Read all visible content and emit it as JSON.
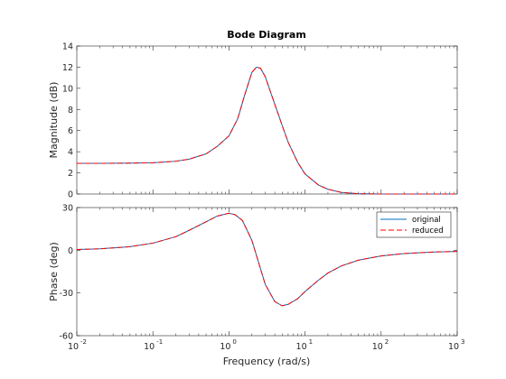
{
  "figure": {
    "title": "Bode Diagram",
    "xlabel": "Frequency  (rad/s)"
  },
  "chart_data": [
    {
      "type": "line",
      "panel": "magnitude",
      "ylabel": "Magnitude (dB)",
      "xscale": "log",
      "xlim": [
        0.01,
        1000
      ],
      "ylim": [
        0,
        14
      ],
      "yticks": [
        0,
        2,
        4,
        6,
        8,
        10,
        12,
        14
      ],
      "grid": false,
      "series": [
        {
          "name": "original",
          "color": "#0072bd",
          "style": "solid",
          "x": [
            0.01,
            0.02,
            0.05,
            0.1,
            0.2,
            0.3,
            0.5,
            0.7,
            1.0,
            1.3,
            1.6,
            2.0,
            2.3,
            2.6,
            3.0,
            3.5,
            4.0,
            5.0,
            6.0,
            8.0,
            10,
            15,
            20,
            30,
            50,
            100,
            200,
            500,
            1000
          ],
          "y": [
            2.9,
            2.9,
            2.92,
            2.96,
            3.1,
            3.3,
            3.8,
            4.5,
            5.5,
            7.1,
            9.3,
            11.5,
            12.0,
            11.9,
            11.1,
            9.7,
            8.5,
            6.5,
            4.9,
            3.0,
            1.9,
            0.85,
            0.45,
            0.15,
            0.03,
            0.0,
            0.0,
            0.0,
            0.0
          ]
        },
        {
          "name": "reduced",
          "color": "#ff0000",
          "style": "dashed",
          "x": [
            0.01,
            0.02,
            0.05,
            0.1,
            0.2,
            0.3,
            0.5,
            0.7,
            1.0,
            1.3,
            1.6,
            2.0,
            2.3,
            2.6,
            3.0,
            3.5,
            4.0,
            5.0,
            6.0,
            8.0,
            10,
            15,
            20,
            30,
            50,
            100,
            200,
            500,
            1000
          ],
          "y": [
            2.9,
            2.9,
            2.92,
            2.96,
            3.1,
            3.3,
            3.8,
            4.5,
            5.5,
            7.1,
            9.3,
            11.5,
            12.0,
            11.9,
            11.1,
            9.7,
            8.5,
            6.5,
            4.9,
            3.0,
            1.9,
            0.85,
            0.45,
            0.15,
            0.03,
            0.0,
            0.0,
            0.0,
            0.0
          ]
        }
      ]
    },
    {
      "type": "line",
      "panel": "phase",
      "ylabel": "Phase (deg)",
      "xscale": "log",
      "xlim": [
        0.01,
        1000
      ],
      "ylim": [
        -60,
        30
      ],
      "yticks": [
        -60,
        -30,
        0,
        30
      ],
      "xticks": [
        "10-2",
        "10-1",
        "100",
        "101",
        "102",
        "103"
      ],
      "grid": false,
      "legend": {
        "position": "top-right",
        "entries": [
          "original",
          "reduced"
        ]
      },
      "series": [
        {
          "name": "original",
          "color": "#0072bd",
          "style": "solid",
          "x": [
            0.01,
            0.02,
            0.05,
            0.1,
            0.2,
            0.3,
            0.5,
            0.7,
            1.0,
            1.2,
            1.5,
            2.0,
            2.5,
            3.0,
            4.0,
            5.0,
            6.0,
            8.0,
            10,
            15,
            20,
            30,
            50,
            100,
            200,
            500,
            1000
          ],
          "y": [
            0.5,
            1.0,
            2.5,
            5.0,
            9.5,
            14,
            20,
            24,
            26,
            25,
            21,
            7,
            -10,
            -24,
            -36,
            -39,
            -38,
            -34,
            -29,
            -21,
            -16,
            -11,
            -7,
            -4,
            -2.3,
            -1.2,
            -0.8
          ]
        },
        {
          "name": "reduced",
          "color": "#ff0000",
          "style": "dashed",
          "x": [
            0.01,
            0.02,
            0.05,
            0.1,
            0.2,
            0.3,
            0.5,
            0.7,
            1.0,
            1.2,
            1.5,
            2.0,
            2.5,
            3.0,
            4.0,
            5.0,
            6.0,
            8.0,
            10,
            15,
            20,
            30,
            50,
            100,
            200,
            500,
            1000
          ],
          "y": [
            0.5,
            1.0,
            2.5,
            5.0,
            9.5,
            14,
            20,
            24,
            26,
            25,
            21,
            7,
            -10,
            -24,
            -36,
            -39,
            -38,
            -34,
            -29,
            -21,
            -16,
            -11,
            -7,
            -4,
            -2.3,
            -1.2,
            -0.8
          ]
        }
      ]
    }
  ]
}
